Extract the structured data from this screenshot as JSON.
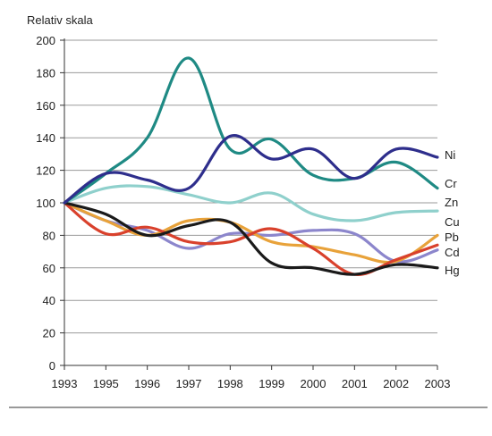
{
  "chart_data": {
    "type": "line",
    "ylabel": "Relativ skala",
    "xlabel": "",
    "x": [
      "1993",
      "1995",
      "1996",
      "1997",
      "1998",
      "1999",
      "2000",
      "2001",
      "2002",
      "2003"
    ],
    "yticks": [
      "0",
      "20",
      "40",
      "60",
      "80",
      "100",
      "120",
      "140",
      "160",
      "180",
      "200"
    ],
    "ylim": [
      0,
      200
    ],
    "grid": true,
    "legend": "right-end labels",
    "series": [
      {
        "name": "Ni",
        "color": "#2e2e8c",
        "values": [
          100,
          118,
          114,
          109,
          141,
          127,
          133,
          115,
          133,
          128
        ]
      },
      {
        "name": "Cr",
        "color": "#1f8a84",
        "values": [
          100,
          118,
          140,
          189,
          133,
          139,
          117,
          115,
          125,
          109
        ]
      },
      {
        "name": "Zn",
        "color": "#8fd0cc",
        "values": [
          100,
          109,
          110,
          105,
          100,
          106,
          93,
          89,
          94,
          95
        ]
      },
      {
        "name": "Cu",
        "color": "#e8a23a",
        "values": [
          100,
          89,
          80,
          89,
          88,
          76,
          73,
          68,
          64,
          80
        ]
      },
      {
        "name": "Pb",
        "color": "#d9412c",
        "values": [
          100,
          81,
          85,
          76,
          76,
          84,
          72,
          56,
          65,
          74
        ]
      },
      {
        "name": "Cd",
        "color": "#8c86cc",
        "values": [
          100,
          89,
          83,
          72,
          81,
          80,
          83,
          81,
          64,
          71
        ]
      },
      {
        "name": "Hg",
        "color": "#1a1a1a",
        "values": [
          100,
          93,
          80,
          86,
          88,
          63,
          60,
          56,
          62,
          60
        ]
      }
    ]
  }
}
